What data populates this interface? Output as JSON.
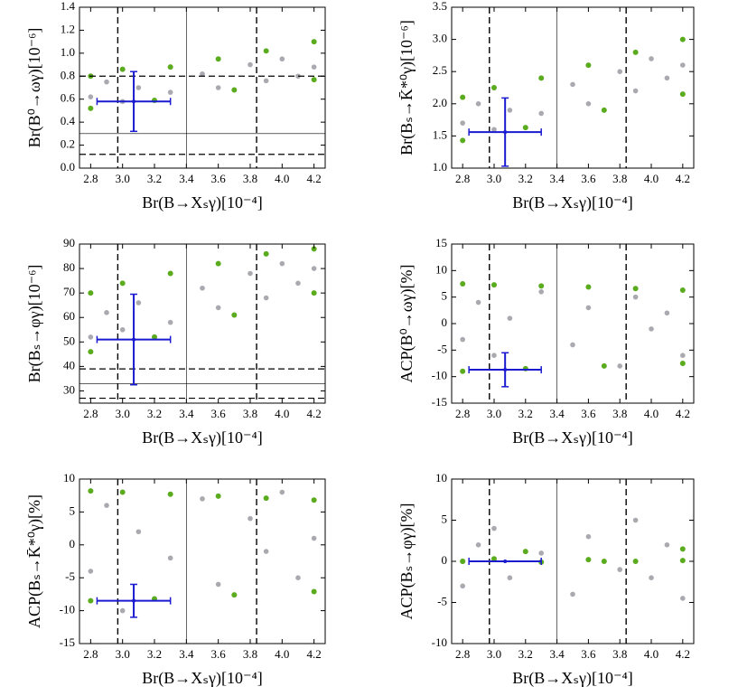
{
  "chart_data": [
    {
      "type": "scatter",
      "xlabel": "Br(B→Xₛγ)[10⁻⁴]",
      "ylabel": "Br(B⁰→ωγ)[10⁻⁶]",
      "xlim": [
        2.73,
        4.27
      ],
      "xticks": [
        2.8,
        {
          "value": 3,
          "label": "3.0"
        },
        3.2,
        3.4,
        3.6,
        3.8,
        {
          "value": 4,
          "label": "4.0"
        },
        4.2
      ],
      "ylim": [
        0,
        1.4
      ],
      "yticks": [
        {
          "value": 0,
          "label": "0.0"
        },
        0.2,
        0.4,
        0.6,
        0.8,
        {
          "value": 1,
          "label": "1.0"
        },
        1.2,
        1.4
      ],
      "vlines": [
        {
          "value": 2.97,
          "style": "dashed"
        },
        {
          "value": 3.4,
          "style": "solid"
        },
        {
          "value": 3.84,
          "style": "dashed"
        }
      ],
      "hlines": [
        {
          "value": 0.8,
          "style": "dashed"
        },
        {
          "value": 0.3,
          "style": "solid"
        },
        {
          "value": 0.12,
          "style": "dashed"
        }
      ],
      "series": [
        {
          "color": "#a9a9b0",
          "x": [
            2.8,
            2.9,
            3.0,
            3.1,
            3.3,
            3.5,
            3.6,
            3.8,
            3.9,
            4.0,
            4.1,
            4.2
          ],
          "y": [
            0.62,
            0.75,
            0.58,
            0.7,
            0.66,
            0.82,
            0.7,
            0.9,
            0.76,
            0.95,
            0.8,
            0.88
          ]
        },
        {
          "color": "#5aac1e",
          "x": [
            2.8,
            3.0,
            3.3,
            3.6,
            3.9,
            4.2,
            2.8,
            3.2,
            3.7,
            4.2
          ],
          "y": [
            0.8,
            0.86,
            0.88,
            0.95,
            1.02,
            1.1,
            0.52,
            0.59,
            0.68,
            0.77
          ]
        }
      ],
      "errorbar": {
        "color": "#1a1ad0",
        "x": 3.07,
        "xerr": 0.23,
        "y": 0.58,
        "yerr": 0.26
      }
    },
    {
      "type": "scatter",
      "xlabel": "Br(B→Xₛγ)[10⁻⁴]",
      "ylabel": "Br(Bₛ→K̄*⁰γ)[10⁻⁶]",
      "xlim": [
        2.73,
        4.27
      ],
      "xticks": [
        2.8,
        {
          "value": 3,
          "label": "3.0"
        },
        3.2,
        3.4,
        3.6,
        3.8,
        {
          "value": 4,
          "label": "4.0"
        },
        4.2
      ],
      "ylim": [
        1,
        3.5
      ],
      "yticks": [
        {
          "value": 1,
          "label": "1.0"
        },
        1.5,
        {
          "value": 2,
          "label": "2.0"
        },
        2.5,
        {
          "value": 3,
          "label": "3.0"
        },
        3.5
      ],
      "vlines": [
        {
          "value": 2.97,
          "style": "dashed"
        },
        {
          "value": 3.4,
          "style": "solid"
        },
        {
          "value": 3.84,
          "style": "dashed"
        }
      ],
      "hlines": [],
      "series": [
        {
          "color": "#a9a9b0",
          "x": [
            2.8,
            2.9,
            3.0,
            3.1,
            3.3,
            3.5,
            3.6,
            3.8,
            3.9,
            4.0,
            4.1,
            4.2
          ],
          "y": [
            1.7,
            2.0,
            1.6,
            1.9,
            1.85,
            2.3,
            2.0,
            2.5,
            2.2,
            2.7,
            2.4,
            2.6
          ]
        },
        {
          "color": "#5aac1e",
          "x": [
            2.8,
            3.0,
            3.3,
            3.6,
            3.9,
            4.2,
            2.8,
            3.2,
            3.7,
            4.2
          ],
          "y": [
            2.1,
            2.25,
            2.4,
            2.6,
            2.8,
            3.0,
            1.43,
            1.63,
            1.9,
            2.15
          ]
        }
      ],
      "errorbar": {
        "color": "#1a1ad0",
        "x": 3.07,
        "xerr": 0.23,
        "y": 1.56,
        "yerr": 0.53
      }
    },
    {
      "type": "scatter",
      "xlabel": "Br(B→Xₛγ)[10⁻⁴]",
      "ylabel": "Br(Bₛ→φγ)[10⁻⁶]",
      "xlim": [
        2.73,
        4.27
      ],
      "xticks": [
        2.8,
        {
          "value": 3,
          "label": "3.0"
        },
        3.2,
        3.4,
        3.6,
        3.8,
        {
          "value": 4,
          "label": "4.0"
        },
        4.2
      ],
      "ylim": [
        25,
        90
      ],
      "yticks": [
        30,
        40,
        50,
        60,
        70,
        80,
        90
      ],
      "vlines": [
        {
          "value": 2.97,
          "style": "dashed"
        },
        {
          "value": 3.4,
          "style": "solid"
        },
        {
          "value": 3.84,
          "style": "dashed"
        }
      ],
      "hlines": [
        {
          "value": 39,
          "style": "dashed"
        },
        {
          "value": 33,
          "style": "solid"
        },
        {
          "value": 27,
          "style": "dashed"
        }
      ],
      "series": [
        {
          "color": "#a9a9b0",
          "x": [
            2.8,
            2.9,
            3.0,
            3.1,
            3.3,
            3.5,
            3.6,
            3.8,
            3.9,
            4.0,
            4.1,
            4.2
          ],
          "y": [
            52,
            62,
            55,
            66,
            58,
            72,
            64,
            78,
            68,
            82,
            74,
            80
          ]
        },
        {
          "color": "#5aac1e",
          "x": [
            2.8,
            3.0,
            3.3,
            3.6,
            3.9,
            4.2,
            2.8,
            3.2,
            3.7,
            4.2
          ],
          "y": [
            70,
            74,
            78,
            82,
            86,
            88,
            46,
            52,
            61,
            70
          ]
        }
      ],
      "errorbar": {
        "color": "#1a1ad0",
        "x": 3.07,
        "xerr": 0.23,
        "y": 51,
        "yerr": 18.5
      }
    },
    {
      "type": "scatter",
      "xlabel": "Br(B→Xₛγ)[10⁻⁴]",
      "ylabel": "ACP(B⁰→ωγ)[%]",
      "xlim": [
        2.73,
        4.27
      ],
      "xticks": [
        2.8,
        {
          "value": 3,
          "label": "3.0"
        },
        3.2,
        3.4,
        3.6,
        3.8,
        {
          "value": 4,
          "label": "4.0"
        },
        4.2
      ],
      "ylim": [
        -15,
        15
      ],
      "yticks": [
        -15,
        -10,
        -5,
        0,
        5,
        10,
        15
      ],
      "vlines": [
        {
          "value": 2.97,
          "style": "dashed"
        },
        {
          "value": 3.4,
          "style": "solid"
        },
        {
          "value": 3.84,
          "style": "dashed"
        }
      ],
      "hlines": [],
      "series": [
        {
          "color": "#a9a9b0",
          "x": [
            2.8,
            2.9,
            3.0,
            3.1,
            3.3,
            3.5,
            3.6,
            3.8,
            3.9,
            4.0,
            4.1,
            4.2
          ],
          "y": [
            -3,
            4,
            -6,
            1,
            6,
            -4,
            3,
            -8,
            5,
            -1,
            2,
            -6
          ]
        },
        {
          "color": "#5aac1e",
          "x": [
            2.8,
            3.0,
            3.3,
            3.6,
            3.9,
            4.2,
            2.8,
            3.2,
            3.7,
            4.2
          ],
          "y": [
            7.5,
            7.3,
            7.1,
            6.9,
            6.6,
            6.3,
            -9,
            -8.5,
            -8,
            -7.5
          ]
        }
      ],
      "errorbar": {
        "color": "#1a1ad0",
        "x": 3.07,
        "xerr": 0.23,
        "y": -8.7,
        "yerr": 3.2
      }
    },
    {
      "type": "scatter",
      "xlabel": "Br(B→Xₛγ)[10⁻⁴]",
      "ylabel": "ACP(Bₛ→K̄*⁰γ)[%]",
      "xlim": [
        2.73,
        4.27
      ],
      "xticks": [
        2.8,
        {
          "value": 3,
          "label": "3.0"
        },
        3.2,
        3.4,
        3.6,
        3.8,
        {
          "value": 4,
          "label": "4.0"
        },
        4.2
      ],
      "ylim": [
        -15,
        10
      ],
      "yticks": [
        -15,
        -10,
        -5,
        0,
        5,
        10
      ],
      "vlines": [
        {
          "value": 2.97,
          "style": "dashed"
        },
        {
          "value": 3.4,
          "style": "solid"
        },
        {
          "value": 3.84,
          "style": "dashed"
        }
      ],
      "hlines": [],
      "series": [
        {
          "color": "#a9a9b0",
          "x": [
            2.8,
            2.9,
            3.0,
            3.1,
            3.3,
            3.5,
            3.6,
            3.8,
            3.9,
            4.0,
            4.1,
            4.2
          ],
          "y": [
            -4,
            6,
            -10,
            2,
            -2,
            7,
            -6,
            4,
            -1,
            8,
            -5,
            1
          ]
        },
        {
          "color": "#5aac1e",
          "x": [
            2.8,
            3.0,
            3.3,
            3.6,
            3.9,
            4.2,
            2.8,
            3.2,
            3.7,
            4.2
          ],
          "y": [
            8.2,
            8.0,
            7.7,
            7.4,
            7.1,
            6.8,
            -8.5,
            -8.2,
            -7.6,
            -7.1
          ]
        }
      ],
      "errorbar": {
        "color": "#1a1ad0",
        "x": 3.07,
        "xerr": 0.23,
        "y": -8.5,
        "yerr": 2.5
      }
    },
    {
      "type": "scatter",
      "xlabel": "Br(B→Xₛγ)[10⁻⁴]",
      "ylabel": "ACP(Bₛ→φγ)[%]",
      "xlim": [
        2.73,
        4.27
      ],
      "xticks": [
        2.8,
        {
          "value": 3,
          "label": "3.0"
        },
        3.2,
        3.4,
        3.6,
        3.8,
        {
          "value": 4,
          "label": "4.0"
        },
        4.2
      ],
      "ylim": [
        -10,
        10
      ],
      "yticks": [
        -10,
        -5,
        0,
        5,
        10
      ],
      "vlines": [
        {
          "value": 2.97,
          "style": "dashed"
        },
        {
          "value": 3.4,
          "style": "solid"
        },
        {
          "value": 3.84,
          "style": "dashed"
        }
      ],
      "hlines": [],
      "series": [
        {
          "color": "#a9a9b0",
          "x": [
            2.8,
            2.9,
            3.0,
            3.1,
            3.3,
            3.5,
            3.6,
            3.8,
            3.9,
            4.0,
            4.1,
            4.2
          ],
          "y": [
            -3,
            2,
            4,
            -2,
            1,
            -4,
            3,
            -1,
            5,
            -2,
            2,
            -4.5
          ]
        },
        {
          "color": "#5aac1e",
          "x": [
            2.8,
            3.0,
            3.3,
            3.6,
            3.9,
            4.2,
            2.8,
            3.2,
            3.7,
            4.2
          ],
          "y": [
            0,
            0.3,
            -0.1,
            0.2,
            0,
            1.5,
            0,
            1.2,
            0,
            0.1
          ]
        }
      ],
      "errorbar": {
        "color": "#1a1ad0",
        "x": 3.07,
        "xerr": 0.23,
        "y": 0,
        "yerr": 0
      }
    }
  ]
}
